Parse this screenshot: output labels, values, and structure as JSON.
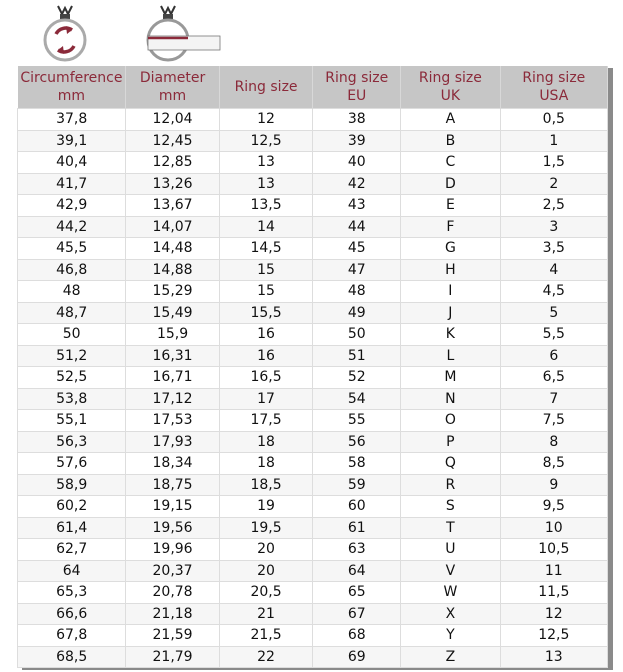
{
  "colors": {
    "accent": "#8b2a3a",
    "header_bg": "#c6c6c6"
  },
  "icons": [
    "ring-circumference-icon",
    "ring-diameter-icon"
  ],
  "headers": [
    [
      "Circumference",
      "mm"
    ],
    [
      "Diameter",
      "mm"
    ],
    [
      "Ring size",
      ""
    ],
    [
      "Ring size",
      "EU"
    ],
    [
      "Ring size",
      "UK"
    ],
    [
      "Ring size",
      "USA"
    ]
  ],
  "rows": [
    [
      "37,8",
      "12,04",
      "12",
      "38",
      "A",
      "0,5"
    ],
    [
      "39,1",
      "12,45",
      "12,5",
      "39",
      "B",
      "1"
    ],
    [
      "40,4",
      "12,85",
      "13",
      "40",
      "C",
      "1,5"
    ],
    [
      "41,7",
      "13,26",
      "13",
      "42",
      "D",
      "2"
    ],
    [
      "42,9",
      "13,67",
      "13,5",
      "43",
      "E",
      "2,5"
    ],
    [
      "44,2",
      "14,07",
      "14",
      "44",
      "F",
      "3"
    ],
    [
      "45,5",
      "14,48",
      "14,5",
      "45",
      "G",
      "3,5"
    ],
    [
      "46,8",
      "14,88",
      "15",
      "47",
      "H",
      "4"
    ],
    [
      "48",
      "15,29",
      "15",
      "48",
      "I",
      "4,5"
    ],
    [
      "48,7",
      "15,49",
      "15,5",
      "49",
      "J",
      "5"
    ],
    [
      "50",
      "15,9",
      "16",
      "50",
      "K",
      "5,5"
    ],
    [
      "51,2",
      "16,31",
      "16",
      "51",
      "L",
      "6"
    ],
    [
      "52,5",
      "16,71",
      "16,5",
      "52",
      "M",
      "6,5"
    ],
    [
      "53,8",
      "17,12",
      "17",
      "54",
      "N",
      "7"
    ],
    [
      "55,1",
      "17,53",
      "17,5",
      "55",
      "O",
      "7,5"
    ],
    [
      "56,3",
      "17,93",
      "18",
      "56",
      "P",
      "8"
    ],
    [
      "57,6",
      "18,34",
      "18",
      "58",
      "Q",
      "8,5"
    ],
    [
      "58,9",
      "18,75",
      "18,5",
      "59",
      "R",
      "9"
    ],
    [
      "60,2",
      "19,15",
      "19",
      "60",
      "S",
      "9,5"
    ],
    [
      "61,4",
      "19,56",
      "19,5",
      "61",
      "T",
      "10"
    ],
    [
      "62,7",
      "19,96",
      "20",
      "63",
      "U",
      "10,5"
    ],
    [
      "64",
      "20,37",
      "20",
      "64",
      "V",
      "11"
    ],
    [
      "65,3",
      "20,78",
      "20,5",
      "65",
      "W",
      "11,5"
    ],
    [
      "66,6",
      "21,18",
      "21",
      "67",
      "X",
      "12"
    ],
    [
      "67,8",
      "21,59",
      "21,5",
      "68",
      "Y",
      "12,5"
    ],
    [
      "68,5",
      "21,79",
      "22",
      "69",
      "Z",
      "13"
    ]
  ]
}
